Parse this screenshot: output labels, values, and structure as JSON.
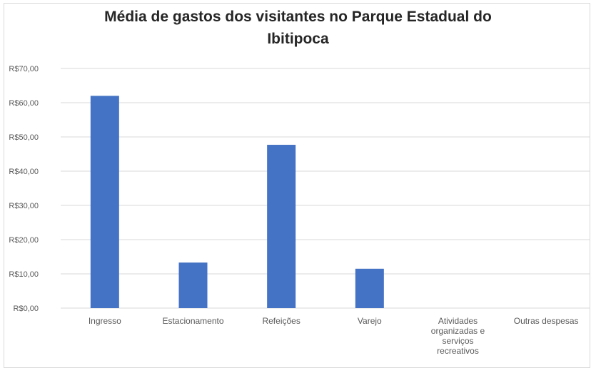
{
  "chart_data": {
    "type": "bar",
    "title": "Média de gastos dos visitantes no Parque Estadual do Ibitipoca",
    "title_lines": [
      "Média de gastos dos visitantes no Parque Estadual do",
      "Ibitipoca"
    ],
    "categories": [
      "Ingresso",
      "Estacionamento",
      "Refeições",
      "Varejo",
      "Atividades organizadas e serviços recreativos",
      "Outras despesas"
    ],
    "category_lines": [
      [
        "Ingresso"
      ],
      [
        "Estacionamento"
      ],
      [
        "Refeições"
      ],
      [
        "Varejo"
      ],
      [
        "Atividades",
        "organizadas e",
        "serviços",
        "recreativos"
      ],
      [
        "Outras despesas"
      ]
    ],
    "values": [
      62.0,
      13.3,
      47.7,
      11.5,
      0,
      0
    ],
    "ylim": [
      0,
      70
    ],
    "yticks": [
      0,
      10,
      20,
      30,
      40,
      50,
      60,
      70
    ],
    "ytick_labels": [
      "R$0,00",
      "R$10,00",
      "R$20,00",
      "R$30,00",
      "R$40,00",
      "R$50,00",
      "R$60,00",
      "R$70,00"
    ],
    "xlabel": "",
    "ylabel": "",
    "grid": true,
    "legend": "none",
    "bar_color": "#4472c4",
    "grid_color": "#d9d9d9"
  }
}
